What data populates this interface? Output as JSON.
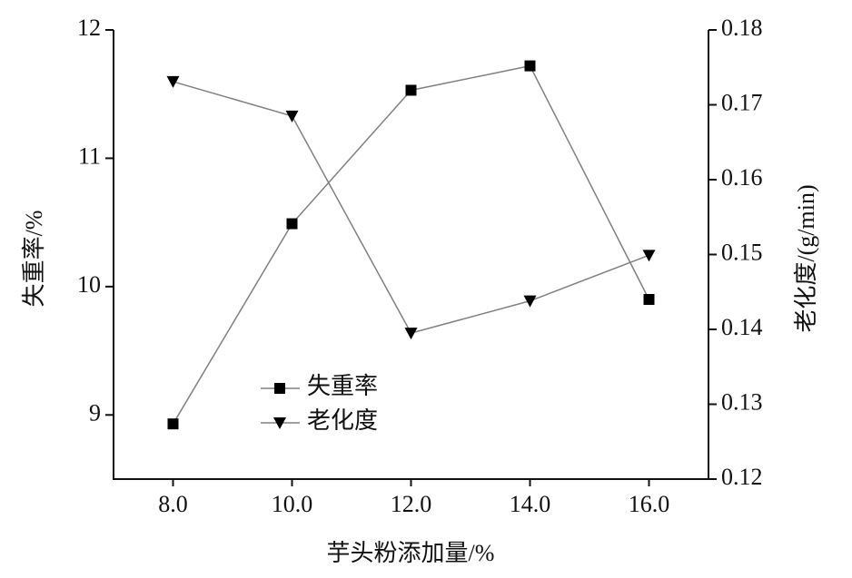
{
  "chart_data": {
    "type": "line",
    "x_label": "芋头粉添加量/%",
    "y_label": "失重率/%",
    "y2_label": "老化度/(g/min)",
    "x": [
      8,
      10,
      12,
      14,
      16
    ],
    "xlim": [
      7,
      17
    ],
    "xticks": [
      {
        "value": 8,
        "label": "8.0"
      },
      {
        "value": 10,
        "label": "10.0"
      },
      {
        "value": 12,
        "label": "12.0"
      },
      {
        "value": 14,
        "label": "14.0"
      },
      {
        "value": 16,
        "label": "16.0"
      }
    ],
    "ylim": [
      8.5,
      12
    ],
    "yticks": [
      9,
      10,
      11,
      12
    ],
    "y2lim": [
      0.12,
      0.18
    ],
    "y2ticks": [
      0.12,
      0.13,
      0.14,
      0.15,
      0.16,
      0.17,
      0.18
    ],
    "series": [
      {
        "name": "失重率",
        "color": "#808080",
        "marker": "square",
        "values": [
          8.93,
          10.49,
          11.53,
          11.72,
          9.9
        ]
      },
      {
        "name": "老化度",
        "color": "#808080",
        "marker": "triangle-down",
        "axis": "y2",
        "values": [
          0.1731,
          0.1685,
          0.1395,
          0.1438,
          0.1499
        ]
      }
    ]
  }
}
